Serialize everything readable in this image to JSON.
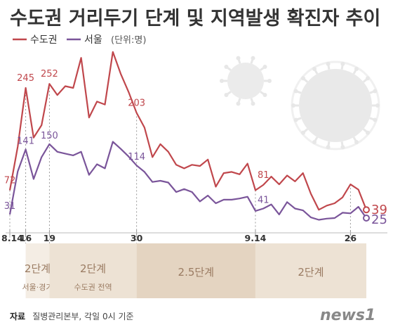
{
  "chart_data": {
    "type": "line",
    "title": "수도권 거리두기 단계 및 지역발생 확진자 추이",
    "unit": "(단위:명)",
    "series": [
      {
        "name": "수도권",
        "color": "#c0474c",
        "values": [
          72,
          146,
          245,
          161,
          182,
          252,
          233,
          248,
          245,
          296,
          195,
          222,
          217,
          306,
          269,
          238,
          203,
          178,
          128,
          150,
          137,
          115,
          109,
          115,
          113,
          124,
          78,
          101,
          103,
          99,
          117,
          72,
          81,
          95,
          82,
          97,
          87,
          101,
          66,
          39,
          46,
          50,
          60,
          82,
          73,
          39
        ]
      },
      {
        "name": "서울",
        "color": "#7a559a",
        "values": [
          31,
          104,
          141,
          91,
          128,
          150,
          137,
          134,
          131,
          137,
          98,
          116,
          109,
          154,
          142,
          129,
          114,
          103,
          86,
          88,
          85,
          69,
          74,
          69,
          53,
          63,
          50,
          56,
          56,
          58,
          61,
          37,
          41,
          48,
          31,
          52,
          41,
          38,
          26,
          22,
          24,
          25,
          34,
          33,
          44,
          25
        ]
      }
    ],
    "labels_red": [
      {
        "i": 0,
        "text": "72"
      },
      {
        "i": 2,
        "text": "245"
      },
      {
        "i": 5,
        "text": "252"
      },
      {
        "i": 16,
        "text": "203"
      },
      {
        "i": 32,
        "text": "81"
      }
    ],
    "labels_purple": [
      {
        "i": 0,
        "text": "31"
      },
      {
        "i": 2,
        "text": "141"
      },
      {
        "i": 5,
        "text": "150"
      },
      {
        "i": 16,
        "text": "114"
      },
      {
        "i": 32,
        "text": "41"
      }
    ],
    "end_labels": {
      "red": "39",
      "purple": "25"
    },
    "x_ticks": [
      {
        "i": 0,
        "text": "8.14"
      },
      {
        "i": 2,
        "text": "16"
      },
      {
        "i": 5,
        "text": "19"
      },
      {
        "i": 16,
        "text": "30"
      },
      {
        "i": 31,
        "text": "9.14"
      },
      {
        "i": 43,
        "text": "26"
      }
    ],
    "ylim": [
      0,
      320
    ],
    "grid": false
  },
  "stages": [
    {
      "from": 2,
      "to": 5,
      "label": "2단계",
      "sub": "서울·경기",
      "color": "#f4ede4"
    },
    {
      "from": 5,
      "to": 16,
      "label": "2단계",
      "sub": "수도권 전역",
      "color": "#ede2d4"
    },
    {
      "from": 16,
      "to": 31,
      "label": "2.5단계",
      "sub": "",
      "color": "#e4d4c1"
    },
    {
      "from": 31,
      "to": 45,
      "label": "2단계",
      "sub": "",
      "color": "#ede2d4"
    }
  ],
  "source": {
    "label": "자료",
    "text": "질병관리본부, 각일 0시 기준"
  },
  "logo": "news1"
}
